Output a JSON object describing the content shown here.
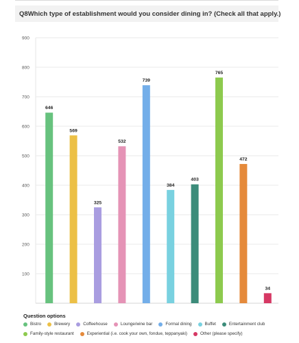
{
  "question": {
    "number": "Q8",
    "text": "Which type of establishment would you consider dining in? (Check all that apply.)"
  },
  "chart_data": {
    "type": "bar",
    "categories": [
      "Bistro",
      "Brewery",
      "Coffeehouse",
      "Lounge/wine bar",
      "Formal dining",
      "Buffet",
      "Entertainment club",
      "Family-style restaurant",
      "Experiential (i.e. cook your own, fondue, teppanyaki)",
      "Other (please specify)"
    ],
    "values": [
      646,
      569,
      325,
      532,
      739,
      384,
      403,
      765,
      472,
      34
    ],
    "colors": [
      "#67c27e",
      "#ecc046",
      "#a99de0",
      "#e593b6",
      "#73aee9",
      "#79d1e0",
      "#3c8c7a",
      "#8dca4e",
      "#e58a3b",
      "#d63864"
    ],
    "ylim": [
      0,
      900
    ],
    "yticks": [
      100,
      200,
      300,
      400,
      500,
      600,
      700,
      800,
      900
    ],
    "grid": true,
    "legend_position": "bottom"
  },
  "legend": {
    "title": "Question options",
    "rows": [
      [
        0,
        1,
        2,
        3,
        4,
        5,
        6
      ],
      [
        7,
        8,
        9
      ]
    ]
  }
}
